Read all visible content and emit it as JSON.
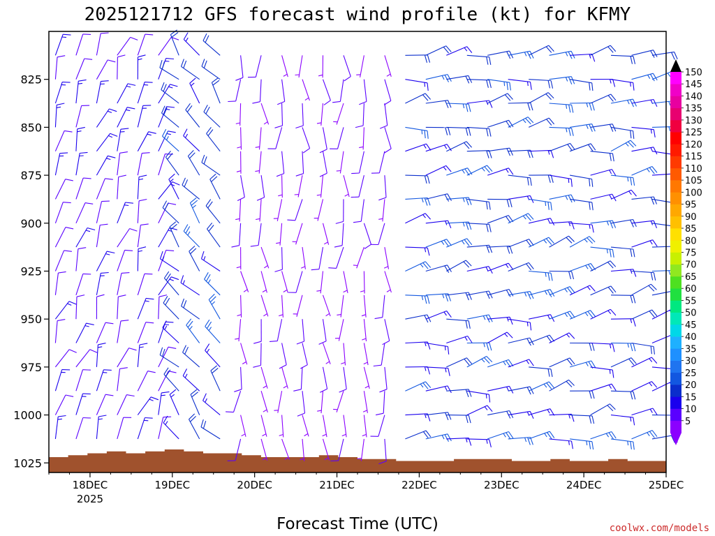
{
  "chart_data": {
    "type": "wind_barb_profile",
    "title": "2025121712 GFS forecast wind profile (kt) for KFMY",
    "xlabel": "Forecast Time (UTC)",
    "credit": "coolwx.com/models",
    "x_ticks": [
      "18DEC",
      "19DEC",
      "20DEC",
      "21DEC",
      "22DEC",
      "23DEC",
      "24DEC",
      "25DEC"
    ],
    "x_year_label": "2025",
    "x_range_days": [
      17.5,
      25.0
    ],
    "y_ticks": [
      "825",
      "850",
      "875",
      "900",
      "925",
      "950",
      "975",
      "1000",
      "1025"
    ],
    "y_range_hPa": [
      800,
      1030
    ],
    "pressure_levels_hPa": [
      812.5,
      825,
      837.5,
      850,
      862.5,
      875,
      887.5,
      900,
      912.5,
      925,
      937.5,
      950,
      962.5,
      975,
      987.5,
      1000,
      1012.5
    ],
    "time_step_hours": 6,
    "barb_style": "wind direction from the barb end, speed in knots",
    "direction_regimes": [
      {
        "start_day": 17.5,
        "end_day": 18.9,
        "direction_deg": 20,
        "speed_kt": [
          10,
          15
        ]
      },
      {
        "start_day": 18.9,
        "end_day": 19.8,
        "direction_deg": 320,
        "speed_kt": [
          15,
          25
        ]
      },
      {
        "start_day": 19.8,
        "end_day": 21.7,
        "direction_deg": 180,
        "speed_kt": [
          5,
          10
        ]
      },
      {
        "start_day": 21.7,
        "end_day": 25.0,
        "direction_deg": 80,
        "speed_kt": [
          15,
          25
        ]
      }
    ],
    "surface_pressure_hPa": [
      1022,
      1021,
      1020,
      1019,
      1020,
      1019,
      1018,
      1019,
      1020,
      1020,
      1021,
      1022,
      1022,
      1022,
      1021,
      1022,
      1023,
      1023,
      1024,
      1024,
      1024,
      1023,
      1023,
      1023,
      1024,
      1024,
      1023,
      1024,
      1024,
      1023,
      1024,
      1024
    ],
    "colorbar": {
      "units": "kt",
      "labels": [
        "5",
        "10",
        "15",
        "20",
        "25",
        "30",
        "35",
        "40",
        "45",
        "50",
        "55",
        "60",
        "65",
        "70",
        "75",
        "80",
        "85",
        "90",
        "95",
        "100",
        "105",
        "110",
        "115",
        "120",
        "125",
        "130",
        "135",
        "140",
        "145",
        "150"
      ],
      "colors": [
        "#8b00ff",
        "#5a00ff",
        "#1a00ee",
        "#0a2ecc",
        "#1257e0",
        "#1f74f0",
        "#1e90ff",
        "#1eb0ff",
        "#00d8e8",
        "#00e8b8",
        "#00e880",
        "#20e040",
        "#4ee020",
        "#90e820",
        "#c8f000",
        "#f0f000",
        "#ffe000",
        "#ffc000",
        "#ffa800",
        "#ff9000",
        "#ff7800",
        "#ff5a00",
        "#ff3a00",
        "#ff1a00",
        "#ff0000",
        "#f00040",
        "#e80070",
        "#e800a0",
        "#f000c8",
        "#ff00ff"
      ]
    }
  }
}
